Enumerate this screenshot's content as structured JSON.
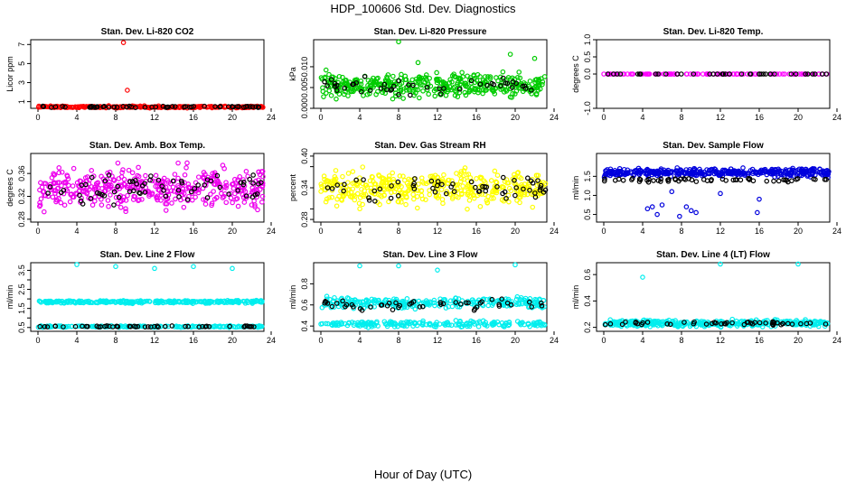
{
  "figure": {
    "title": "HDP_100606  Std. Dev. Diagnostics",
    "xlabel": "Hour of Day (UTC)"
  },
  "chart_data": [
    {
      "type": "scatter",
      "title": "Stan. Dev. Li-820 CO2",
      "ylabel": "Licor ppm",
      "xlim": [
        0,
        24
      ],
      "ylim": [
        0.3,
        7.5
      ],
      "yticks": [
        1,
        3,
        5,
        7
      ],
      "xticks": [
        0,
        4,
        8,
        12,
        16,
        20,
        24
      ],
      "color": "#ff0000",
      "base": 0.45,
      "spread": 0.15,
      "count": 260,
      "black_base": 0.45,
      "black_spread": 0.1,
      "black_count": 60,
      "outliers": [
        [
          8.8,
          7.2
        ],
        [
          9.2,
          2.2
        ]
      ]
    },
    {
      "type": "scatter",
      "title": "Stan. Dev. Li-820 Pressure",
      "ylabel": "kPa",
      "xlim": [
        0,
        24
      ],
      "ylim": [
        0.0,
        0.0165
      ],
      "yticks": [
        0.0,
        0.005,
        0.01
      ],
      "ytick_labels": [
        "0.000",
        "0.005",
        "0.010"
      ],
      "xticks": [
        0,
        4,
        8,
        12,
        16,
        20,
        24
      ],
      "color": "#00cc00",
      "base": 0.0055,
      "spread": 0.004,
      "count": 420,
      "black_base": 0.005,
      "black_spread": 0.003,
      "black_count": 50,
      "outliers": [
        [
          8,
          0.016
        ],
        [
          24,
          0.016
        ],
        [
          19.5,
          0.013
        ],
        [
          10,
          0.011
        ],
        [
          22,
          0.012
        ]
      ]
    },
    {
      "type": "scatter",
      "title": "Stan. Dev. Li-820 Temp.",
      "ylabel": "degrees C",
      "xlim": [
        0,
        24
      ],
      "ylim": [
        -1.0,
        1.0
      ],
      "yticks": [
        -1.0,
        0.0,
        0.5,
        1.0
      ],
      "ytick_labels": [
        "-1.0",
        "0.0",
        "0.5",
        "1.0"
      ],
      "xticks": [
        0,
        4,
        8,
        12,
        16,
        20,
        24
      ],
      "color": "#ff00ff",
      "base": 0.0,
      "spread": 0.0,
      "count": 120,
      "black_base": 0.0,
      "black_spread": 0.0,
      "black_count": 40,
      "outliers": []
    },
    {
      "type": "scatter",
      "title": "Stan. Dev. Amb. Box Temp.",
      "ylabel": "degrees C",
      "xlim": [
        0,
        24
      ],
      "ylim": [
        0.275,
        0.395
      ],
      "yticks": [
        0.28,
        0.32,
        0.36
      ],
      "ytick_labels": [
        "0.28",
        "0.32",
        "0.36"
      ],
      "xticks": [
        0,
        4,
        8,
        12,
        16,
        20,
        24
      ],
      "color": "#ee00ee",
      "base": 0.335,
      "spread": 0.05,
      "count": 420,
      "black_base": 0.335,
      "black_spread": 0.035,
      "black_count": 70,
      "outliers": []
    },
    {
      "type": "scatter",
      "title": "Stan. Dev. Gas Stream RH",
      "ylabel": "percent",
      "xlim": [
        0,
        24
      ],
      "ylim": [
        0.275,
        0.405
      ],
      "yticks": [
        0.28,
        0.3,
        0.34,
        0.38,
        0.4
      ],
      "ytick_labels": [
        "0.28",
        "",
        "0.34",
        "",
        "0.40"
      ],
      "xticks": [
        0,
        4,
        8,
        12,
        16,
        20,
        24
      ],
      "color": "#ffff00",
      "base": 0.34,
      "spread": 0.045,
      "count": 420,
      "black_base": 0.34,
      "black_spread": 0.03,
      "black_count": 60,
      "outliers": []
    },
    {
      "type": "scatter",
      "title": "Stan. Dev. Sample Flow",
      "ylabel": "ml/min",
      "xlim": [
        0,
        24
      ],
      "ylim": [
        0.3,
        2.1
      ],
      "yticks": [
        0.5,
        1.0,
        1.5
      ],
      "ytick_labels": [
        "0.5",
        "1.0",
        "1.5"
      ],
      "xticks": [
        0,
        4,
        8,
        12,
        16,
        20,
        24
      ],
      "color": "#0000dd",
      "base": 1.6,
      "spread": 0.15,
      "count": 420,
      "black_base": 1.4,
      "black_spread": 0.08,
      "black_count": 60,
      "outliers": [
        [
          4.5,
          0.65
        ],
        [
          5,
          0.7
        ],
        [
          5.5,
          0.5
        ],
        [
          6,
          0.75
        ],
        [
          7.8,
          0.45
        ],
        [
          8.5,
          0.7
        ],
        [
          9,
          0.6
        ],
        [
          9.5,
          0.55
        ],
        [
          15.8,
          0.55
        ],
        [
          16,
          0.9
        ],
        [
          23.8,
          0.45
        ],
        [
          7,
          1.1
        ],
        [
          12,
          1.05
        ]
      ]
    },
    {
      "type": "scatter",
      "title": "Stan. Dev. Line 2 Flow",
      "ylabel": "ml/min",
      "xlim": [
        0,
        24
      ],
      "ylim": [
        0.3,
        3.9
      ],
      "yticks": [
        0.5,
        1.0,
        1.5,
        2.0,
        2.5,
        3.0,
        3.5
      ],
      "ytick_labels": [
        "0.5",
        "",
        "1.5",
        "",
        "2.5",
        "",
        "3.5"
      ],
      "xticks": [
        0,
        4,
        8,
        12,
        16,
        20,
        24
      ],
      "color": "#00eeee",
      "bands": [
        [
          1.85,
          0.1,
          300
        ],
        [
          0.55,
          0.06,
          180
        ]
      ],
      "black_base": 0.55,
      "black_spread": 0.05,
      "black_count": 50,
      "outliers": [
        [
          4,
          3.8
        ],
        [
          8,
          3.7
        ],
        [
          12,
          3.6
        ],
        [
          16,
          3.7
        ],
        [
          20,
          3.6
        ],
        [
          24,
          3.7
        ]
      ]
    },
    {
      "type": "scatter",
      "title": "Stan. Dev. Line 3 Flow",
      "ylabel": "ml/min",
      "xlim": [
        0,
        24
      ],
      "ylim": [
        0.35,
        1.0
      ],
      "yticks": [
        0.4,
        0.6,
        0.8
      ],
      "ytick_labels": [
        "0.4",
        "0.6",
        "0.8"
      ],
      "xticks": [
        0,
        4,
        8,
        12,
        16,
        20,
        24
      ],
      "color": "#00eeee",
      "bands": [
        [
          0.62,
          0.07,
          280
        ],
        [
          0.42,
          0.04,
          200
        ]
      ],
      "black_base": 0.6,
      "black_spread": 0.07,
      "black_count": 50,
      "outliers": [
        [
          4,
          0.97
        ],
        [
          8,
          0.97
        ],
        [
          12,
          0.93
        ],
        [
          20,
          0.98
        ],
        [
          24,
          0.94
        ]
      ]
    },
    {
      "type": "scatter",
      "title": "Stan. Dev. Line 4 (LT) Flow",
      "ylabel": "ml/min",
      "xlim": [
        0,
        24
      ],
      "ylim": [
        0.17,
        0.69
      ],
      "yticks": [
        0.2,
        0.4,
        0.6
      ],
      "ytick_labels": [
        "0.2",
        "0.4",
        "0.6"
      ],
      "xticks": [
        0,
        4,
        8,
        12,
        16,
        20,
        24
      ],
      "color": "#00eeee",
      "base": 0.23,
      "spread": 0.035,
      "count": 380,
      "black_base": 0.23,
      "black_spread": 0.02,
      "black_count": 50,
      "outliers": [
        [
          4,
          0.58
        ],
        [
          12,
          0.68
        ],
        [
          20,
          0.68
        ]
      ]
    }
  ]
}
